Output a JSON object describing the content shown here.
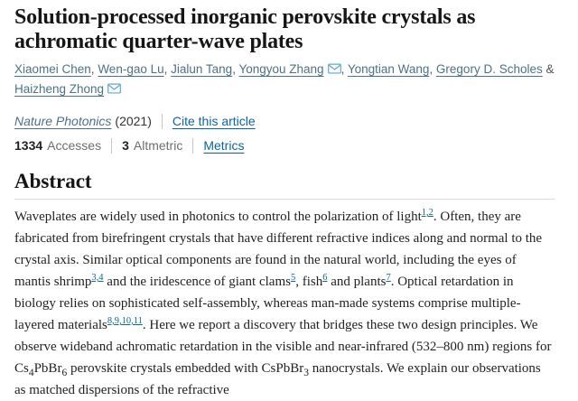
{
  "title": "Solution-processed inorganic perovskite crystals as achromatic quarter-wave plates",
  "authors": {
    "separator": ", ",
    "last_separator": " & ",
    "email_icon": "envelope",
    "list": [
      {
        "name": "Xiaomei Chen",
        "email": false
      },
      {
        "name": "Wen-gao Lu",
        "email": false
      },
      {
        "name": "Jialun Tang",
        "email": false
      },
      {
        "name": "Yongyou Zhang",
        "email": true
      },
      {
        "name": "Yongtian Wang",
        "email": false
      },
      {
        "name": "Gregory D. Scholes",
        "email": false
      },
      {
        "name": "Haizheng Zhong",
        "email": true
      }
    ]
  },
  "meta": {
    "journal": "Nature Photonics",
    "year": "(2021)",
    "cite_link": "Cite this article"
  },
  "metrics": {
    "accesses_count": "1334",
    "accesses_label": "Accesses",
    "altmetric_count": "3",
    "altmetric_label": "Altmetric",
    "metrics_link": "Metrics"
  },
  "abstract": {
    "heading": "Abstract",
    "segments": [
      {
        "t": "text",
        "v": "Waveplates are widely used in photonics to control the polarization of light"
      },
      {
        "t": "ref",
        "v": "1,2"
      },
      {
        "t": "text",
        "v": ". Often, they are fabricated from birefringent crystals that have different refractive indices along and normal to the crystal axis. Similar optical components are found in the natural world, including the eyes of mantis shrimp"
      },
      {
        "t": "ref",
        "v": "3,4"
      },
      {
        "t": "text",
        "v": " and the iridescence of giant clams"
      },
      {
        "t": "ref",
        "v": "5"
      },
      {
        "t": "text",
        "v": ", fish"
      },
      {
        "t": "ref",
        "v": "6"
      },
      {
        "t": "text",
        "v": " and plants"
      },
      {
        "t": "ref",
        "v": "7"
      },
      {
        "t": "text",
        "v": ". Optical retardation in biology relies on sophisticated self-assembly, whereas man-made systems comprise multiple-layered materials"
      },
      {
        "t": "ref",
        "v": "8,9,10,11"
      },
      {
        "t": "text",
        "v": ". Here we report a discovery that bridges these two design principles. We observe wideband achromatic retardation in the visible and near-infrared (532–800 nm) regions for Cs"
      },
      {
        "t": "sub",
        "v": "4"
      },
      {
        "t": "text",
        "v": "PbBr"
      },
      {
        "t": "sub",
        "v": "6"
      },
      {
        "t": "text",
        "v": " perovskite crystals embedded with CsPbBr"
      },
      {
        "t": "sub",
        "v": "3"
      },
      {
        "t": "text",
        "v": " nanocrystals. We explain our observations as matched dispersions of the refractive"
      }
    ]
  },
  "colors": {
    "link_blue": "#0b66a4",
    "author_link": "#4c7287",
    "email_icon_blue": "#5fa8d3",
    "heading_text": "#161616",
    "body_text": "#222222",
    "muted_label": "#6e6e6e"
  }
}
